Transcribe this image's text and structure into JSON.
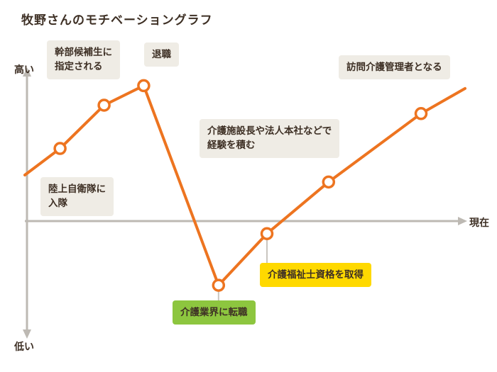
{
  "title": "牧野さんのモチベーショングラフ",
  "axis": {
    "high_label": "高い",
    "low_label": "低い",
    "now_label": "現在"
  },
  "events": {
    "enlist": "陸上自衛隊に\n入隊",
    "officer_candidate": "幹部候補生に\n指定される",
    "resignation": "退職",
    "career_change": "介護業界に転職",
    "certification": "介護福祉士資格を取得",
    "experience": "介護施設長や法人本社などで\n経験を積む",
    "manager": "訪問介護管理者となる"
  },
  "colors": {
    "line": "#ED7420",
    "axis": "#BDB9B3",
    "connector": "#C9C5BF",
    "label_bg": "#EFECE5",
    "green": "#8DC63F",
    "yellow": "#FFD900",
    "text": "#3E3025",
    "marker_fill": "#FFFFFF"
  },
  "chart_data": {
    "type": "line",
    "title": "牧野さんのモチベーショングラフ",
    "xlabel": "現在",
    "ylabel_top": "高い",
    "ylabel_bottom": "低い",
    "ylim": [
      -100,
      100
    ],
    "grid": false,
    "legend": "none",
    "points": [
      {
        "x": 0,
        "y": 33,
        "label": "",
        "marker": false
      },
      {
        "x": 8,
        "y": 52,
        "label": "陸上自衛隊に入隊",
        "marker": true
      },
      {
        "x": 18,
        "y": 83,
        "label": "幹部候補生に指定される",
        "marker": true
      },
      {
        "x": 27,
        "y": 97,
        "label": "退職",
        "marker": true
      },
      {
        "x": 44,
        "y": -46,
        "label": "介護業界に転職",
        "marker": true
      },
      {
        "x": 55,
        "y": -9,
        "label": "介護福祉士資格を取得",
        "marker": true
      },
      {
        "x": 69,
        "y": 28,
        "label": "介護施設長や法人本社などで経験を積む",
        "marker": true
      },
      {
        "x": 90,
        "y": 77,
        "label": "訪問介護管理者となる",
        "marker": true
      },
      {
        "x": 100,
        "y": 95,
        "label": "",
        "marker": false
      }
    ]
  }
}
